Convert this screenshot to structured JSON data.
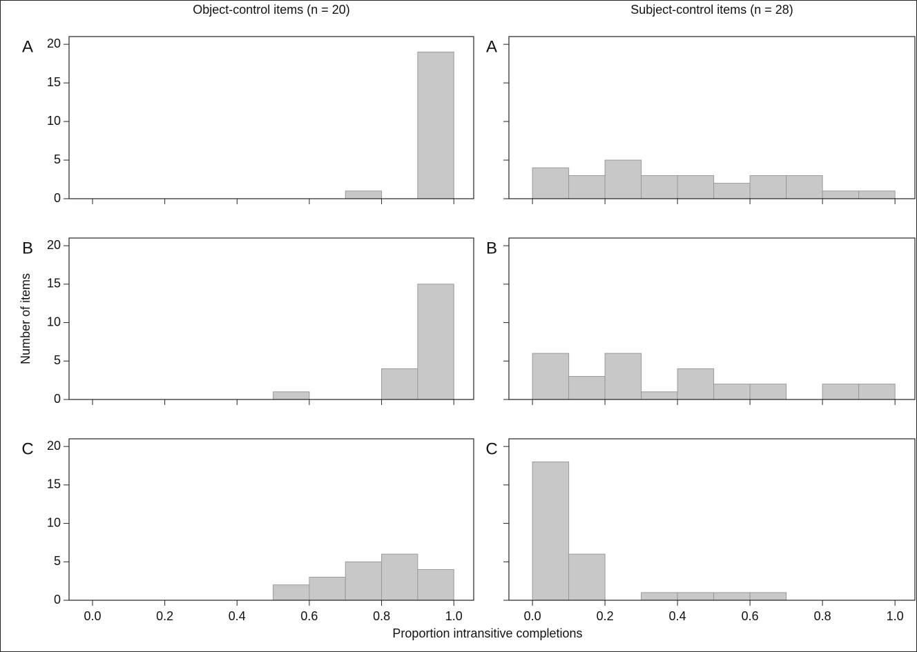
{
  "chart_data": [
    {
      "type": "histogram",
      "title": "Object-control items (n = 20)",
      "panel": "A",
      "bins": [
        0,
        0.1,
        0.2,
        0.3,
        0.4,
        0.5,
        0.6,
        0.7,
        0.8,
        0.9,
        1.0
      ],
      "values": [
        0,
        0,
        0,
        0,
        0,
        0,
        0,
        1,
        0,
        19
      ],
      "color": "#c8c8c8",
      "xlim": [
        -0.065,
        1.055
      ],
      "ylim": [
        0,
        21
      ],
      "xticks": [
        {
          "value": 0,
          "label": "0.0"
        },
        0.2,
        0.4,
        0.6,
        0.8,
        {
          "value": 1,
          "label": "1.0"
        }
      ],
      "yticks": [
        0,
        5,
        10,
        15,
        20
      ],
      "xtick_labels": false,
      "ytick_labels": true
    },
    {
      "type": "histogram",
      "title": "Subject-control items (n = 28)",
      "panel": "A",
      "bins": [
        0,
        0.1,
        0.2,
        0.3,
        0.4,
        0.5,
        0.6,
        0.7,
        0.8,
        0.9,
        1.0
      ],
      "values": [
        4,
        3,
        5,
        3,
        3,
        2,
        3,
        3,
        1,
        1
      ],
      "color": "#c8c8c8",
      "xlim": [
        -0.065,
        1.055
      ],
      "ylim": [
        0,
        21
      ],
      "xticks": [
        {
          "value": 0,
          "label": "0.0"
        },
        0.2,
        0.4,
        0.6,
        0.8,
        {
          "value": 1,
          "label": "1.0"
        }
      ],
      "yticks": [
        0,
        5,
        10,
        15,
        20
      ],
      "xtick_labels": false,
      "ytick_labels": false
    },
    {
      "type": "histogram",
      "panel": "B",
      "ylabel": "Number of items",
      "bins": [
        0,
        0.1,
        0.2,
        0.3,
        0.4,
        0.5,
        0.6,
        0.7,
        0.8,
        0.9,
        1.0
      ],
      "values": [
        0,
        0,
        0,
        0,
        0,
        1,
        0,
        0,
        4,
        15
      ],
      "color": "#c8c8c8",
      "xlim": [
        -0.065,
        1.055
      ],
      "ylim": [
        0,
        21
      ],
      "xticks": [
        {
          "value": 0,
          "label": "0.0"
        },
        0.2,
        0.4,
        0.6,
        0.8,
        {
          "value": 1,
          "label": "1.0"
        }
      ],
      "yticks": [
        0,
        5,
        10,
        15,
        20
      ],
      "xtick_labels": false,
      "ytick_labels": true
    },
    {
      "type": "histogram",
      "panel": "B",
      "bins": [
        0,
        0.1,
        0.2,
        0.3,
        0.4,
        0.5,
        0.6,
        0.7,
        0.8,
        0.9,
        1.0
      ],
      "values": [
        6,
        3,
        6,
        1,
        4,
        2,
        2,
        0,
        2,
        2
      ],
      "color": "#c8c8c8",
      "xlim": [
        -0.065,
        1.055
      ],
      "ylim": [
        0,
        21
      ],
      "xticks": [
        {
          "value": 0,
          "label": "0.0"
        },
        0.2,
        0.4,
        0.6,
        0.8,
        {
          "value": 1,
          "label": "1.0"
        }
      ],
      "yticks": [
        0,
        5,
        10,
        15,
        20
      ],
      "xtick_labels": false,
      "ytick_labels": false
    },
    {
      "type": "histogram",
      "panel": "C",
      "bins": [
        0,
        0.1,
        0.2,
        0.3,
        0.4,
        0.5,
        0.6,
        0.7,
        0.8,
        0.9,
        1.0
      ],
      "values": [
        0,
        0,
        0,
        0,
        0,
        2,
        3,
        5,
        6,
        4
      ],
      "color": "#c8c8c8",
      "xlim": [
        -0.065,
        1.055
      ],
      "ylim": [
        0,
        21
      ],
      "xticks": [
        {
          "value": 0,
          "label": "0.0"
        },
        0.2,
        0.4,
        0.6,
        0.8,
        {
          "value": 1,
          "label": "1.0"
        }
      ],
      "yticks": [
        0,
        5,
        10,
        15,
        20
      ],
      "xtick_labels": true,
      "ytick_labels": true
    },
    {
      "type": "histogram",
      "panel": "C",
      "bins": [
        0,
        0.1,
        0.2,
        0.3,
        0.4,
        0.5,
        0.6,
        0.7,
        0.8,
        0.9,
        1.0
      ],
      "values": [
        18,
        6,
        0,
        1,
        1,
        1,
        1,
        0,
        0,
        0
      ],
      "color": "#c8c8c8",
      "xlim": [
        -0.065,
        1.055
      ],
      "ylim": [
        0,
        21
      ],
      "xticks": [
        {
          "value": 0,
          "label": "0.0"
        },
        0.2,
        0.4,
        0.6,
        0.8,
        {
          "value": 1,
          "label": "1.0"
        }
      ],
      "yticks": [
        0,
        5,
        10,
        15,
        20
      ],
      "xtick_labels": true,
      "ytick_labels": false
    }
  ],
  "xlabel": "Proportion intransitive completions"
}
